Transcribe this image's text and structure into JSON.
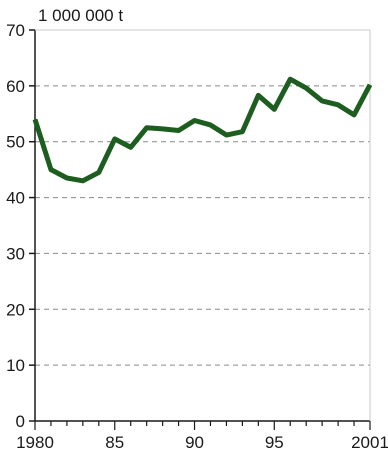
{
  "chart_data": {
    "type": "line",
    "title": "",
    "xlabel": "",
    "ylabel": "1 000 000 t",
    "xlim": [
      1980,
      2001
    ],
    "ylim": [
      0,
      70
    ],
    "grid": true,
    "x_ticks": [
      1980,
      1985,
      1990,
      1995,
      2001
    ],
    "x_tick_labels": [
      "1980",
      "85",
      "90",
      "95",
      "2001"
    ],
    "y_ticks": [
      0,
      10,
      20,
      30,
      40,
      50,
      60,
      70
    ],
    "y_tick_labels": [
      "0",
      "10",
      "20",
      "30",
      "40",
      "50",
      "60",
      "70"
    ],
    "series": [
      {
        "color": "#1d5e20",
        "x": [
          1980,
          1981,
          1982,
          1983,
          1984,
          1985,
          1986,
          1987,
          1988,
          1989,
          1990,
          1991,
          1992,
          1993,
          1994,
          1995,
          1996,
          1997,
          1998,
          1999,
          2000,
          2001
        ],
        "values": [
          54,
          45,
          43.5,
          43,
          44.5,
          50.5,
          49,
          52.5,
          52.3,
          52,
          53.8,
          53,
          51.2,
          51.8,
          58.3,
          55.8,
          61.2,
          59.6,
          57.3,
          56.6,
          54.8,
          60.2
        ]
      }
    ]
  }
}
